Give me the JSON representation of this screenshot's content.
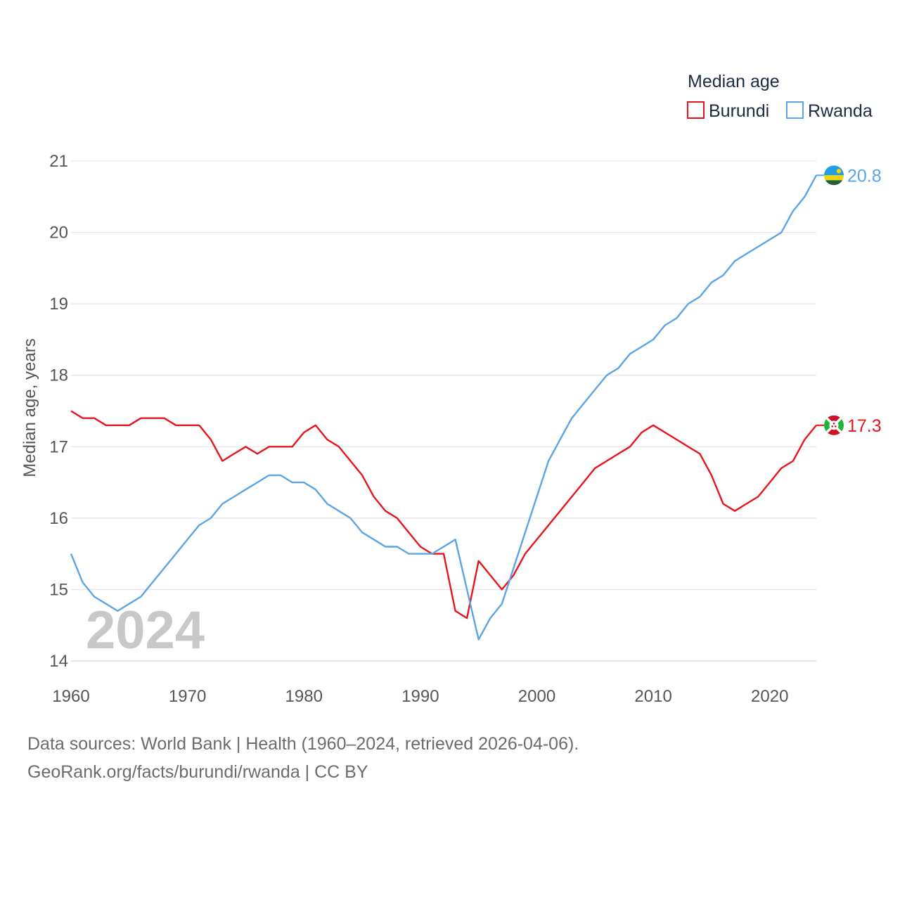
{
  "chart_data": {
    "type": "line",
    "title": "",
    "legend_title": "Median age",
    "legend_position": "top-right",
    "ylabel": "Median age, years",
    "xlabel": "",
    "xlim": [
      1960,
      2024
    ],
    "ylim": [
      14,
      21
    ],
    "xticks": [
      1960,
      1970,
      1980,
      1990,
      2000,
      2010,
      2020
    ],
    "yticks": [
      14,
      15,
      16,
      17,
      18,
      19,
      20,
      21
    ],
    "grid": true,
    "year_watermark": "2024",
    "x": [
      1960,
      1961,
      1962,
      1963,
      1964,
      1965,
      1966,
      1967,
      1968,
      1969,
      1970,
      1971,
      1972,
      1973,
      1974,
      1975,
      1976,
      1977,
      1978,
      1979,
      1980,
      1981,
      1982,
      1983,
      1984,
      1985,
      1986,
      1987,
      1988,
      1989,
      1990,
      1991,
      1992,
      1993,
      1994,
      1995,
      1996,
      1997,
      1998,
      1999,
      2000,
      2001,
      2002,
      2003,
      2004,
      2005,
      2006,
      2007,
      2008,
      2009,
      2010,
      2011,
      2012,
      2013,
      2014,
      2015,
      2016,
      2017,
      2018,
      2019,
      2020,
      2021,
      2022,
      2023,
      2024
    ],
    "series": [
      {
        "name": "Burundi",
        "color": "#e8141b",
        "end_label": "17.3",
        "flag": "burundi-flag",
        "values": [
          17.5,
          17.4,
          17.4,
          17.3,
          17.3,
          17.3,
          17.4,
          17.4,
          17.4,
          17.3,
          17.3,
          17.3,
          17.1,
          16.8,
          16.9,
          17.0,
          16.9,
          17.0,
          17.0,
          17.0,
          17.2,
          17.3,
          17.1,
          17.0,
          16.8,
          16.6,
          16.3,
          16.1,
          16.0,
          15.8,
          15.6,
          15.5,
          15.5,
          14.7,
          14.6,
          15.4,
          15.2,
          15.0,
          15.2,
          15.5,
          15.7,
          15.9,
          16.1,
          16.3,
          16.5,
          16.7,
          16.8,
          16.9,
          17.0,
          17.2,
          17.3,
          17.2,
          17.1,
          17.0,
          16.9,
          16.6,
          16.2,
          16.1,
          16.2,
          16.3,
          16.5,
          16.7,
          16.8,
          17.1,
          17.3
        ]
      },
      {
        "name": "Rwanda",
        "color": "#5ba4e6",
        "end_label": "20.8",
        "flag": "rwanda-flag",
        "values": [
          15.5,
          15.1,
          14.9,
          14.8,
          14.7,
          14.8,
          14.9,
          15.1,
          15.3,
          15.5,
          15.7,
          15.9,
          16.0,
          16.2,
          16.3,
          16.4,
          16.5,
          16.6,
          16.6,
          16.5,
          16.5,
          16.4,
          16.2,
          16.1,
          16.0,
          15.8,
          15.7,
          15.6,
          15.6,
          15.5,
          15.5,
          15.5,
          15.6,
          15.7,
          15.0,
          14.3,
          14.6,
          14.8,
          15.3,
          15.8,
          16.3,
          16.8,
          17.1,
          17.4,
          17.6,
          17.8,
          18.0,
          18.1,
          18.3,
          18.4,
          18.5,
          18.7,
          18.8,
          19.0,
          19.1,
          19.3,
          19.4,
          19.6,
          19.7,
          19.8,
          19.9,
          20.0,
          20.3,
          20.5,
          20.8
        ]
      }
    ]
  },
  "footer": {
    "sources": "Data sources: World Bank | Health (1960–2024, retrieved 2026-04-06).",
    "url": "GeoRank.org/facts/burundi/rwanda | CC BY"
  }
}
